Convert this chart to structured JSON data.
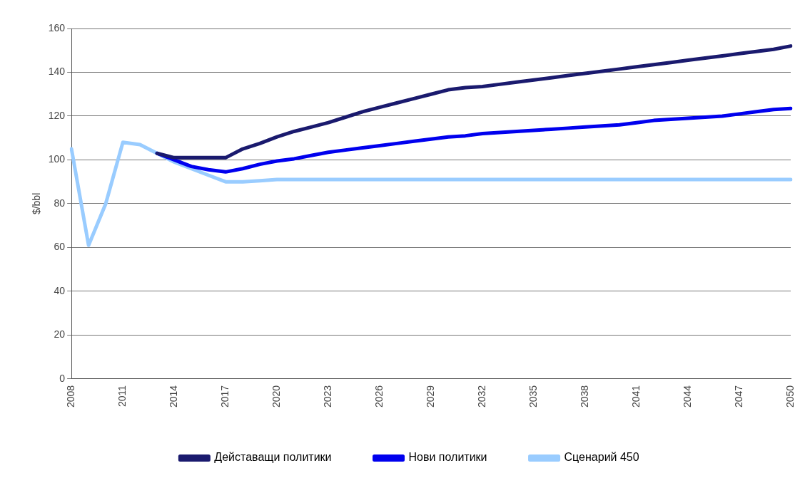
{
  "chart_data": {
    "type": "line",
    "ylabel": "$/bbl",
    "categories": [
      "2008",
      null,
      null,
      "2011",
      null,
      null,
      "2014",
      null,
      null,
      "2017",
      null,
      null,
      "2020",
      null,
      null,
      "2023",
      null,
      null,
      "2026",
      null,
      null,
      "2029",
      null,
      null,
      "2032",
      null,
      null,
      "2035",
      null,
      null,
      "2038",
      null,
      null,
      "2041",
      null,
      null,
      "2044",
      null,
      null,
      "2047",
      null,
      null,
      "2050"
    ],
    "series": [
      {
        "name": "Дейставащи политики",
        "color": "#1a1a6e",
        "values": [
          null,
          null,
          null,
          null,
          null,
          103,
          101,
          101,
          101,
          101,
          105,
          107.5,
          110.5,
          113,
          115,
          117,
          119.5,
          122,
          124,
          126,
          128,
          130,
          132,
          133,
          133.5,
          134.5,
          135.5,
          136.5,
          137.5,
          138.5,
          139.5,
          140.5,
          141.5,
          142.5,
          143.5,
          144.5,
          145.5,
          146.5,
          147.5,
          148.5,
          149.5,
          150.5,
          152
        ]
      },
      {
        "name": "Нови политики",
        "color": "#0000ee",
        "values": [
          null,
          null,
          null,
          null,
          null,
          103,
          100,
          97,
          95.5,
          94.5,
          96,
          98,
          99.5,
          100.5,
          102,
          103.5,
          104.5,
          105.5,
          106.5,
          107.5,
          108.5,
          109.5,
          110.5,
          111,
          112,
          112.5,
          113,
          113.5,
          114,
          114.5,
          115,
          115.5,
          116,
          117,
          118,
          118.5,
          119,
          119.5,
          120,
          121,
          122,
          123,
          123.5
        ]
      },
      {
        "name": "Сценарий 450",
        "color": "#99ccff",
        "values": [
          105,
          61,
          80,
          108,
          107,
          103,
          99,
          96,
          93,
          90,
          90,
          90.5,
          91,
          91,
          91,
          91,
          91,
          91,
          91,
          91,
          91,
          91,
          91,
          91,
          91,
          91,
          91,
          91,
          91,
          91,
          91,
          91,
          91,
          91,
          91,
          91,
          91,
          91,
          91,
          91,
          91,
          91,
          91
        ]
      }
    ],
    "ylim": [
      0,
      160
    ],
    "yticks": [
      0,
      20,
      40,
      60,
      80,
      100,
      120,
      140,
      160
    ],
    "grid": "y",
    "legend": "bottom",
    "marker": "none",
    "line_style": "solid"
  }
}
